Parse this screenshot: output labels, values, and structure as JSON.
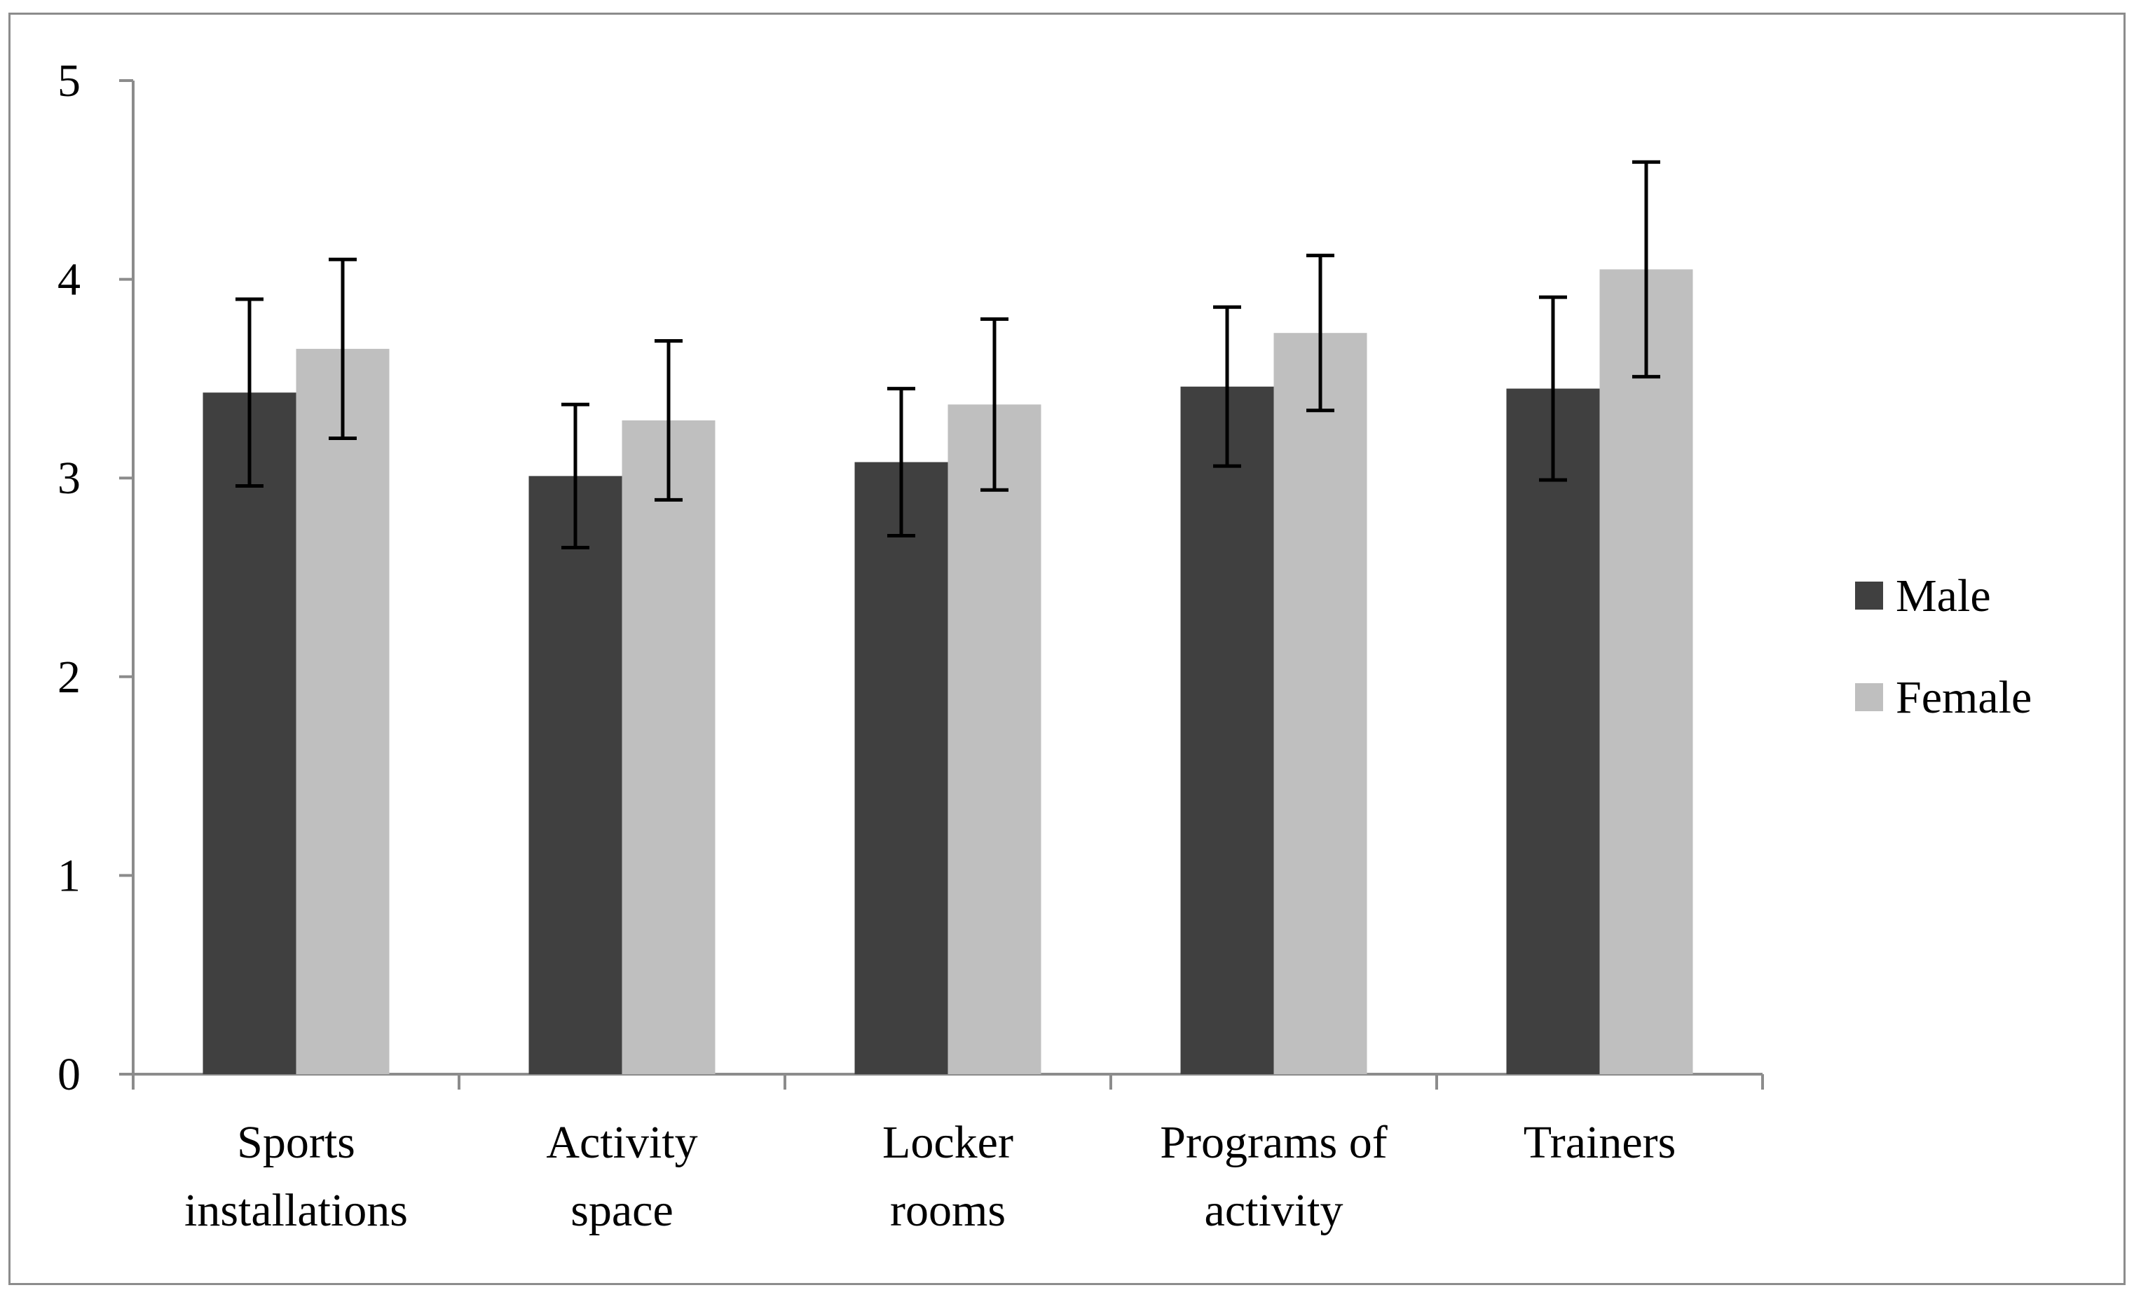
{
  "chart_data": {
    "type": "bar",
    "title": "",
    "xlabel": "",
    "ylabel": "",
    "ylim": [
      0,
      5
    ],
    "yticks": [
      "0",
      "1",
      "2",
      "3",
      "4",
      "5"
    ],
    "categories": [
      [
        "Sports",
        "installations"
      ],
      [
        "Activity",
        "space"
      ],
      [
        "Locker",
        "rooms"
      ],
      [
        "Programs of",
        "activity"
      ],
      [
        "Trainers"
      ]
    ],
    "series": [
      {
        "name": "Male",
        "color": "#404040",
        "values": [
          3.43,
          3.01,
          3.08,
          3.46,
          3.45
        ],
        "error": [
          0.47,
          0.36,
          0.37,
          0.4,
          0.46
        ]
      },
      {
        "name": "Female",
        "color": "#bfbfbf",
        "values": [
          3.65,
          3.29,
          3.37,
          3.73,
          4.05
        ],
        "error": [
          0.45,
          0.4,
          0.43,
          0.39,
          0.54
        ]
      }
    ],
    "legend_position": "right",
    "grid": false
  }
}
